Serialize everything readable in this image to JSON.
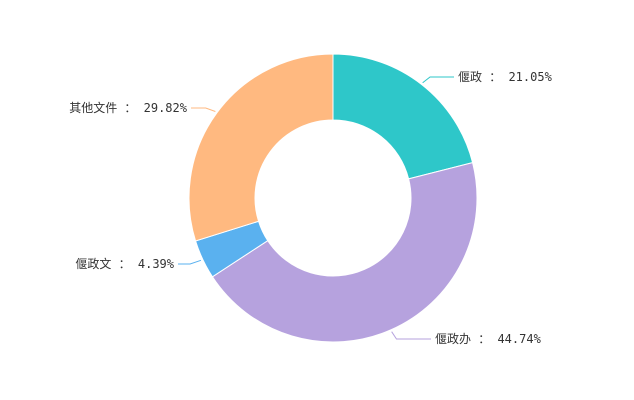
{
  "chart_data": {
    "type": "pie",
    "variant": "donut",
    "title": "",
    "slices": [
      {
        "label": "偃政",
        "value": 21.05,
        "display": "21.05%",
        "color": "#2ec7c9"
      },
      {
        "label": "偃政办",
        "value": 44.74,
        "display": "44.74%",
        "color": "#b6a2de"
      },
      {
        "label": "偃政文",
        "value": 4.39,
        "display": "4.39%",
        "color": "#5ab1ef"
      },
      {
        "label": "其他文件",
        "value": 29.82,
        "display": "29.82%",
        "color": "#ffb980"
      }
    ],
    "label_separator": " ： ",
    "start_angle": "12 o'clock",
    "direction": "clockwise",
    "legend": "none"
  }
}
